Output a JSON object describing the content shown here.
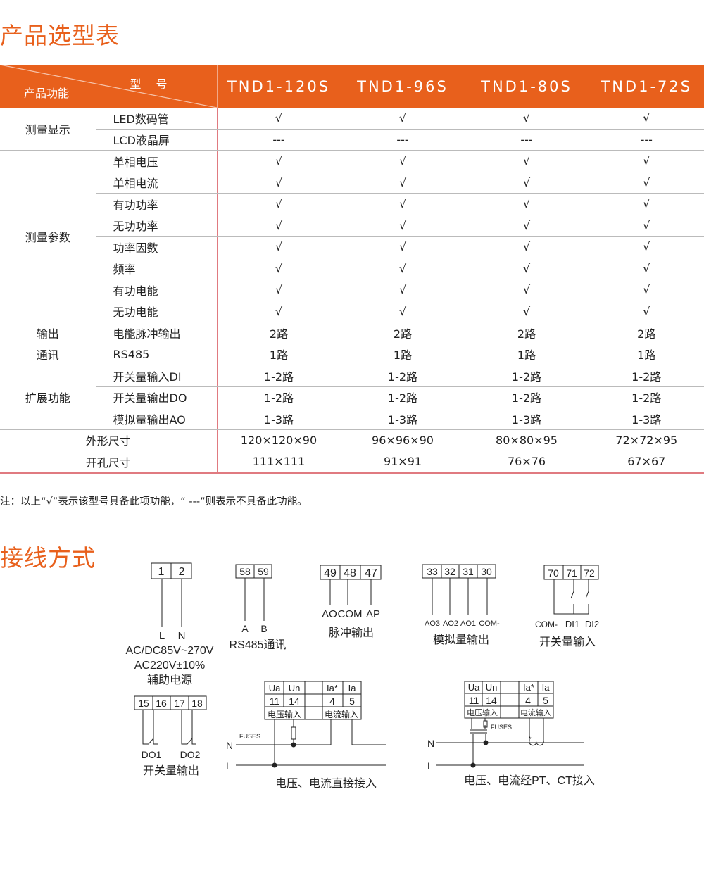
{
  "section1_title": "产品选型表",
  "section2_title": "接线方式",
  "colors": {
    "accent": "#e8601c",
    "border": "#e07a80"
  },
  "table": {
    "corner_model": "型 号",
    "corner_function": "产品功能",
    "models": [
      "TND1-120S",
      "TND1-96S",
      "TND1-80S",
      "TND1-72S"
    ],
    "groups": [
      {
        "name": "测量显示",
        "rows": [
          {
            "feature": "LED数码管",
            "values": [
              "√",
              "√",
              "√",
              "√"
            ]
          },
          {
            "feature": "LCD液晶屏",
            "values": [
              "---",
              "---",
              "---",
              "---"
            ]
          }
        ]
      },
      {
        "name": "测量参数",
        "rows": [
          {
            "feature": "单相电压",
            "values": [
              "√",
              "√",
              "√",
              "√"
            ]
          },
          {
            "feature": "单相电流",
            "values": [
              "√",
              "√",
              "√",
              "√"
            ]
          },
          {
            "feature": "有功功率",
            "values": [
              "√",
              "√",
              "√",
              "√"
            ]
          },
          {
            "feature": "无功功率",
            "values": [
              "√",
              "√",
              "√",
              "√"
            ]
          },
          {
            "feature": "功率因数",
            "values": [
              "√",
              "√",
              "√",
              "√"
            ]
          },
          {
            "feature": "频率",
            "values": [
              "√",
              "√",
              "√",
              "√"
            ]
          },
          {
            "feature": "有功电能",
            "values": [
              "√",
              "√",
              "√",
              "√"
            ]
          },
          {
            "feature": "无功电能",
            "values": [
              "√",
              "√",
              "√",
              "√"
            ]
          }
        ]
      },
      {
        "name": "输出",
        "rows": [
          {
            "feature": "电能脉冲输出",
            "values": [
              "2路",
              "2路",
              "2路",
              "2路"
            ]
          }
        ]
      },
      {
        "name": "通讯",
        "rows": [
          {
            "feature": "RS485",
            "values": [
              "1路",
              "1路",
              "1路",
              "1路"
            ]
          }
        ]
      },
      {
        "name": "扩展功能",
        "rows": [
          {
            "feature": "开关量输入DI",
            "values": [
              "1-2路",
              "1-2路",
              "1-2路",
              "1-2路"
            ]
          },
          {
            "feature": "开关量输出DO",
            "values": [
              "1-2路",
              "1-2路",
              "1-2路",
              "1-2路"
            ]
          },
          {
            "feature": "模拟量输出AO",
            "values": [
              "1-3路",
              "1-3路",
              "1-3路",
              "1-3路"
            ]
          }
        ]
      }
    ],
    "dimensions": [
      {
        "label": "外形尺寸",
        "values": [
          "120×120×90",
          "96×96×90",
          "80×80×95",
          "72×72×95"
        ]
      },
      {
        "label": "开孔尺寸",
        "values": [
          "111×111",
          "91×91",
          "76×76",
          "67×67"
        ]
      }
    ]
  },
  "note": "注：以上“√”表示该型号具备此项功能，“ ---”则表示不具备此功能。",
  "wiring": {
    "power": {
      "terminals": [
        "1",
        "2"
      ],
      "labels": [
        "L",
        "N"
      ],
      "line1": "AC/DC85V~270V",
      "line2": "AC220V±10%",
      "caption": "辅助电源"
    },
    "rs485": {
      "terminals": [
        "58",
        "59"
      ],
      "labels": [
        "A",
        "B"
      ],
      "caption": "RS485通讯"
    },
    "pulse": {
      "terminals": [
        "49",
        "48",
        "47"
      ],
      "labels": [
        "AO",
        "COM",
        "AP"
      ],
      "caption": "脉冲输出"
    },
    "analog": {
      "terminals": [
        "33",
        "32",
        "31",
        "30"
      ],
      "labels": [
        "AO3",
        "AO2",
        "AO1",
        "COM-"
      ],
      "caption": "模拟量输出"
    },
    "di": {
      "terminals": [
        "70",
        "71",
        "72"
      ],
      "labels": [
        "COM-",
        "DI1",
        "DI2"
      ],
      "caption": "开关量输入"
    },
    "do": {
      "terminals": [
        "15",
        "16",
        "17",
        "18"
      ],
      "labels": [
        "DO1",
        "DO2"
      ],
      "caption": "开关量输出"
    },
    "direct": {
      "heads": [
        "Ua",
        "Un",
        "",
        "Ia*",
        "Ia"
      ],
      "nums": [
        "11",
        "14",
        "",
        "4",
        "5"
      ],
      "voltage_in": "电压输入",
      "current_in": "电流输入",
      "fuses": "FUSES",
      "n": "N",
      "l": "L",
      "caption": "电压、电流直接接入"
    },
    "ptct": {
      "heads": [
        "Ua",
        "Un",
        "",
        "Ia*",
        "Ia"
      ],
      "nums": [
        "11",
        "14",
        "",
        "4",
        "5"
      ],
      "voltage_in": "电压输入",
      "current_in": "电流输入",
      "fuses": "FUSES",
      "n": "N",
      "l": "L",
      "caption": "电压、电流经PT、CT接入"
    }
  }
}
